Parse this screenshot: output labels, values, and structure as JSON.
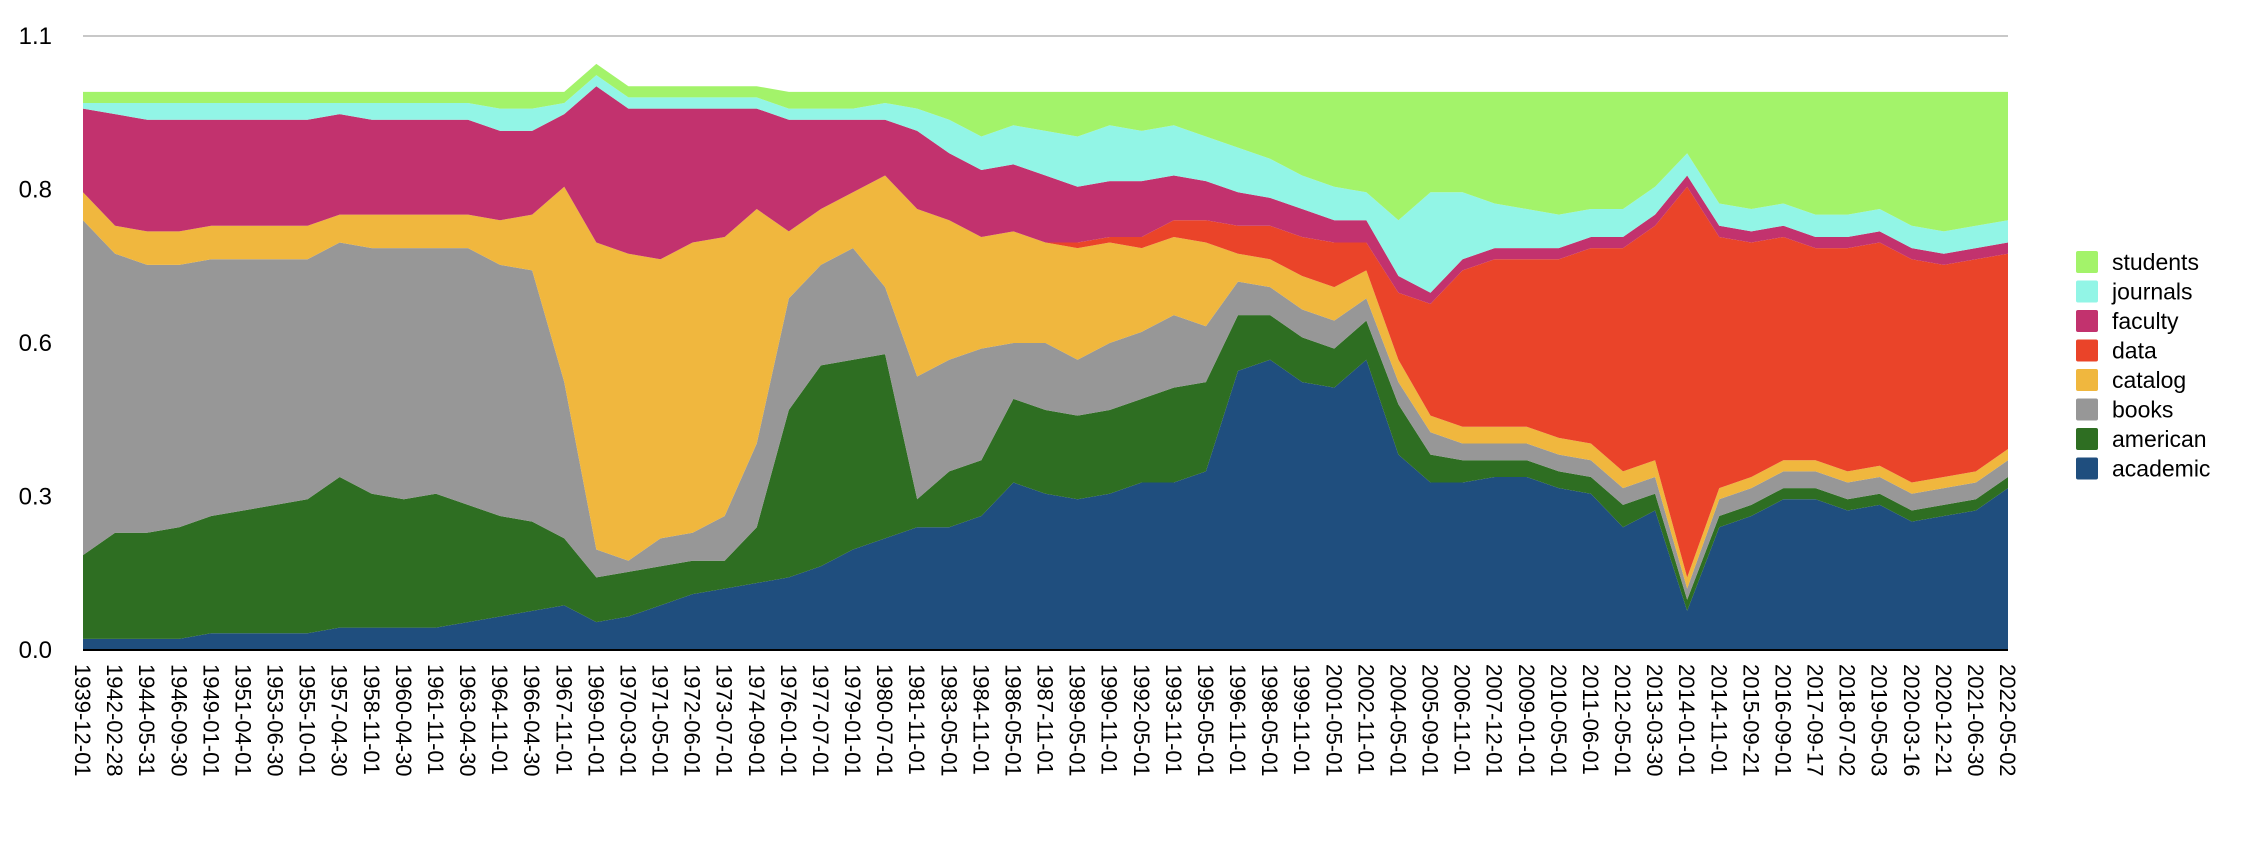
{
  "chart_data": {
    "type": "area",
    "stacked": true,
    "title": "",
    "xlabel": "",
    "ylabel": "",
    "ylim": [
      0,
      1.1
    ],
    "y_ticks": [
      "0.0",
      "0.3",
      "0.6",
      "0.8",
      "1.1"
    ],
    "y_tick_values": [
      0.0,
      0.275,
      0.55,
      0.825,
      1.1
    ],
    "grid": "horizontal",
    "legend_position": "right",
    "x": [
      "1939-12-01",
      "1942-02-28",
      "1944-05-31",
      "1946-09-30",
      "1949-01-01",
      "1951-04-01",
      "1953-06-30",
      "1955-10-01",
      "1957-04-30",
      "1958-11-01",
      "1960-04-30",
      "1961-11-01",
      "1963-04-30",
      "1964-11-01",
      "1966-04-30",
      "1967-11-01",
      "1969-01-01",
      "1970-03-01",
      "1971-05-01",
      "1972-06-01",
      "1973-07-01",
      "1974-09-01",
      "1976-01-01",
      "1977-07-01",
      "1979-01-01",
      "1980-07-01",
      "1981-11-01",
      "1983-05-01",
      "1984-11-01",
      "1986-05-01",
      "1987-11-01",
      "1989-05-01",
      "1990-11-01",
      "1992-05-01",
      "1993-11-01",
      "1995-05-01",
      "1996-11-01",
      "1998-05-01",
      "1999-11-01",
      "2001-05-01",
      "2002-11-01",
      "2004-05-01",
      "2005-09-01",
      "2006-11-01",
      "2007-12-01",
      "2009-01-01",
      "2010-05-01",
      "2011-06-01",
      "2012-05-01",
      "2013-03-30",
      "2014-01-01",
      "2014-11-01",
      "2015-09-21",
      "2016-09-01",
      "2017-09-17",
      "2018-07-02",
      "2019-05-03",
      "2020-03-16",
      "2020-12-21",
      "2021-06-30",
      "2022-05-02"
    ],
    "series": [
      {
        "name": "academic",
        "color": "#1f4e7e",
        "values": [
          0.02,
          0.02,
          0.02,
          0.02,
          0.03,
          0.03,
          0.03,
          0.03,
          0.04,
          0.04,
          0.04,
          0.04,
          0.05,
          0.06,
          0.07,
          0.08,
          0.05,
          0.06,
          0.08,
          0.1,
          0.11,
          0.12,
          0.13,
          0.15,
          0.18,
          0.2,
          0.22,
          0.22,
          0.24,
          0.3,
          0.28,
          0.27,
          0.28,
          0.3,
          0.3,
          0.32,
          0.5,
          0.52,
          0.48,
          0.47,
          0.52,
          0.35,
          0.3,
          0.3,
          0.31,
          0.31,
          0.29,
          0.28,
          0.22,
          0.25,
          0.07,
          0.22,
          0.24,
          0.27,
          0.27,
          0.25,
          0.26,
          0.23,
          0.24,
          0.25,
          0.29
        ]
      },
      {
        "name": "american",
        "color": "#2e6e22",
        "values": [
          0.15,
          0.19,
          0.19,
          0.2,
          0.21,
          0.22,
          0.23,
          0.24,
          0.27,
          0.24,
          0.23,
          0.24,
          0.21,
          0.18,
          0.16,
          0.12,
          0.08,
          0.08,
          0.07,
          0.06,
          0.05,
          0.1,
          0.3,
          0.36,
          0.34,
          0.33,
          0.05,
          0.1,
          0.1,
          0.15,
          0.15,
          0.15,
          0.15,
          0.15,
          0.17,
          0.16,
          0.1,
          0.08,
          0.08,
          0.07,
          0.07,
          0.09,
          0.05,
          0.04,
          0.03,
          0.03,
          0.03,
          0.03,
          0.04,
          0.03,
          0.02,
          0.02,
          0.02,
          0.02,
          0.02,
          0.02,
          0.02,
          0.02,
          0.02,
          0.02,
          0.02
        ]
      },
      {
        "name": "books",
        "color": "#979797",
        "values": [
          0.6,
          0.5,
          0.48,
          0.47,
          0.46,
          0.45,
          0.44,
          0.43,
          0.42,
          0.44,
          0.45,
          0.44,
          0.46,
          0.45,
          0.45,
          0.28,
          0.05,
          0.02,
          0.05,
          0.05,
          0.08,
          0.15,
          0.2,
          0.18,
          0.2,
          0.12,
          0.22,
          0.2,
          0.2,
          0.1,
          0.12,
          0.1,
          0.12,
          0.12,
          0.13,
          0.1,
          0.06,
          0.05,
          0.05,
          0.05,
          0.04,
          0.04,
          0.04,
          0.03,
          0.03,
          0.03,
          0.03,
          0.03,
          0.03,
          0.03,
          0.02,
          0.03,
          0.03,
          0.03,
          0.03,
          0.03,
          0.03,
          0.03,
          0.03,
          0.03,
          0.03
        ]
      },
      {
        "name": "catalog",
        "color": "#f0b73e",
        "values": [
          0.05,
          0.05,
          0.06,
          0.06,
          0.06,
          0.06,
          0.06,
          0.06,
          0.05,
          0.06,
          0.06,
          0.06,
          0.06,
          0.08,
          0.1,
          0.35,
          0.55,
          0.55,
          0.5,
          0.52,
          0.5,
          0.42,
          0.12,
          0.1,
          0.1,
          0.2,
          0.3,
          0.25,
          0.2,
          0.2,
          0.18,
          0.2,
          0.18,
          0.15,
          0.14,
          0.15,
          0.05,
          0.05,
          0.06,
          0.06,
          0.05,
          0.04,
          0.03,
          0.03,
          0.03,
          0.03,
          0.03,
          0.03,
          0.03,
          0.03,
          0.02,
          0.02,
          0.02,
          0.02,
          0.02,
          0.02,
          0.02,
          0.02,
          0.02,
          0.02,
          0.02
        ]
      },
      {
        "name": "data",
        "color": "#ea4429",
        "values": [
          0.0,
          0.0,
          0.0,
          0.0,
          0.0,
          0.0,
          0.0,
          0.0,
          0.0,
          0.0,
          0.0,
          0.0,
          0.0,
          0.0,
          0.0,
          0.0,
          0.0,
          0.0,
          0.0,
          0.0,
          0.0,
          0.0,
          0.0,
          0.0,
          0.0,
          0.0,
          0.0,
          0.0,
          0.0,
          0.0,
          0.0,
          0.01,
          0.01,
          0.02,
          0.03,
          0.04,
          0.05,
          0.06,
          0.07,
          0.08,
          0.05,
          0.12,
          0.2,
          0.28,
          0.3,
          0.3,
          0.32,
          0.35,
          0.4,
          0.42,
          0.7,
          0.45,
          0.42,
          0.4,
          0.38,
          0.4,
          0.4,
          0.4,
          0.38,
          0.38,
          0.35
        ]
      },
      {
        "name": "faculty",
        "color": "#c2326e",
        "values": [
          0.15,
          0.2,
          0.2,
          0.2,
          0.19,
          0.19,
          0.19,
          0.19,
          0.18,
          0.17,
          0.17,
          0.17,
          0.17,
          0.16,
          0.15,
          0.13,
          0.28,
          0.26,
          0.27,
          0.24,
          0.23,
          0.18,
          0.2,
          0.16,
          0.13,
          0.1,
          0.14,
          0.12,
          0.12,
          0.12,
          0.12,
          0.1,
          0.1,
          0.1,
          0.08,
          0.07,
          0.06,
          0.05,
          0.05,
          0.04,
          0.04,
          0.03,
          0.02,
          0.02,
          0.02,
          0.02,
          0.02,
          0.02,
          0.02,
          0.02,
          0.02,
          0.02,
          0.02,
          0.02,
          0.02,
          0.02,
          0.02,
          0.02,
          0.02,
          0.02,
          0.02
        ]
      },
      {
        "name": "journals",
        "color": "#92f5e6",
        "values": [
          0.01,
          0.02,
          0.03,
          0.03,
          0.03,
          0.03,
          0.03,
          0.03,
          0.02,
          0.03,
          0.03,
          0.03,
          0.03,
          0.04,
          0.04,
          0.02,
          0.02,
          0.02,
          0.02,
          0.02,
          0.02,
          0.02,
          0.02,
          0.02,
          0.02,
          0.03,
          0.04,
          0.06,
          0.06,
          0.07,
          0.08,
          0.09,
          0.1,
          0.09,
          0.09,
          0.08,
          0.08,
          0.07,
          0.06,
          0.06,
          0.05,
          0.1,
          0.18,
          0.12,
          0.08,
          0.07,
          0.06,
          0.05,
          0.05,
          0.05,
          0.04,
          0.04,
          0.04,
          0.04,
          0.04,
          0.04,
          0.04,
          0.04,
          0.04,
          0.04,
          0.04
        ]
      },
      {
        "name": "students",
        "color": "#a3f36a",
        "values": [
          0.02,
          0.02,
          0.02,
          0.02,
          0.02,
          0.02,
          0.02,
          0.02,
          0.02,
          0.02,
          0.02,
          0.02,
          0.02,
          0.03,
          0.03,
          0.02,
          0.02,
          0.02,
          0.02,
          0.02,
          0.02,
          0.02,
          0.03,
          0.03,
          0.03,
          0.02,
          0.03,
          0.05,
          0.08,
          0.06,
          0.07,
          0.08,
          0.06,
          0.07,
          0.06,
          0.08,
          0.1,
          0.12,
          0.15,
          0.17,
          0.18,
          0.23,
          0.18,
          0.18,
          0.2,
          0.21,
          0.22,
          0.21,
          0.21,
          0.17,
          0.11,
          0.2,
          0.21,
          0.2,
          0.22,
          0.22,
          0.21,
          0.24,
          0.25,
          0.24,
          0.23
        ]
      }
    ]
  }
}
